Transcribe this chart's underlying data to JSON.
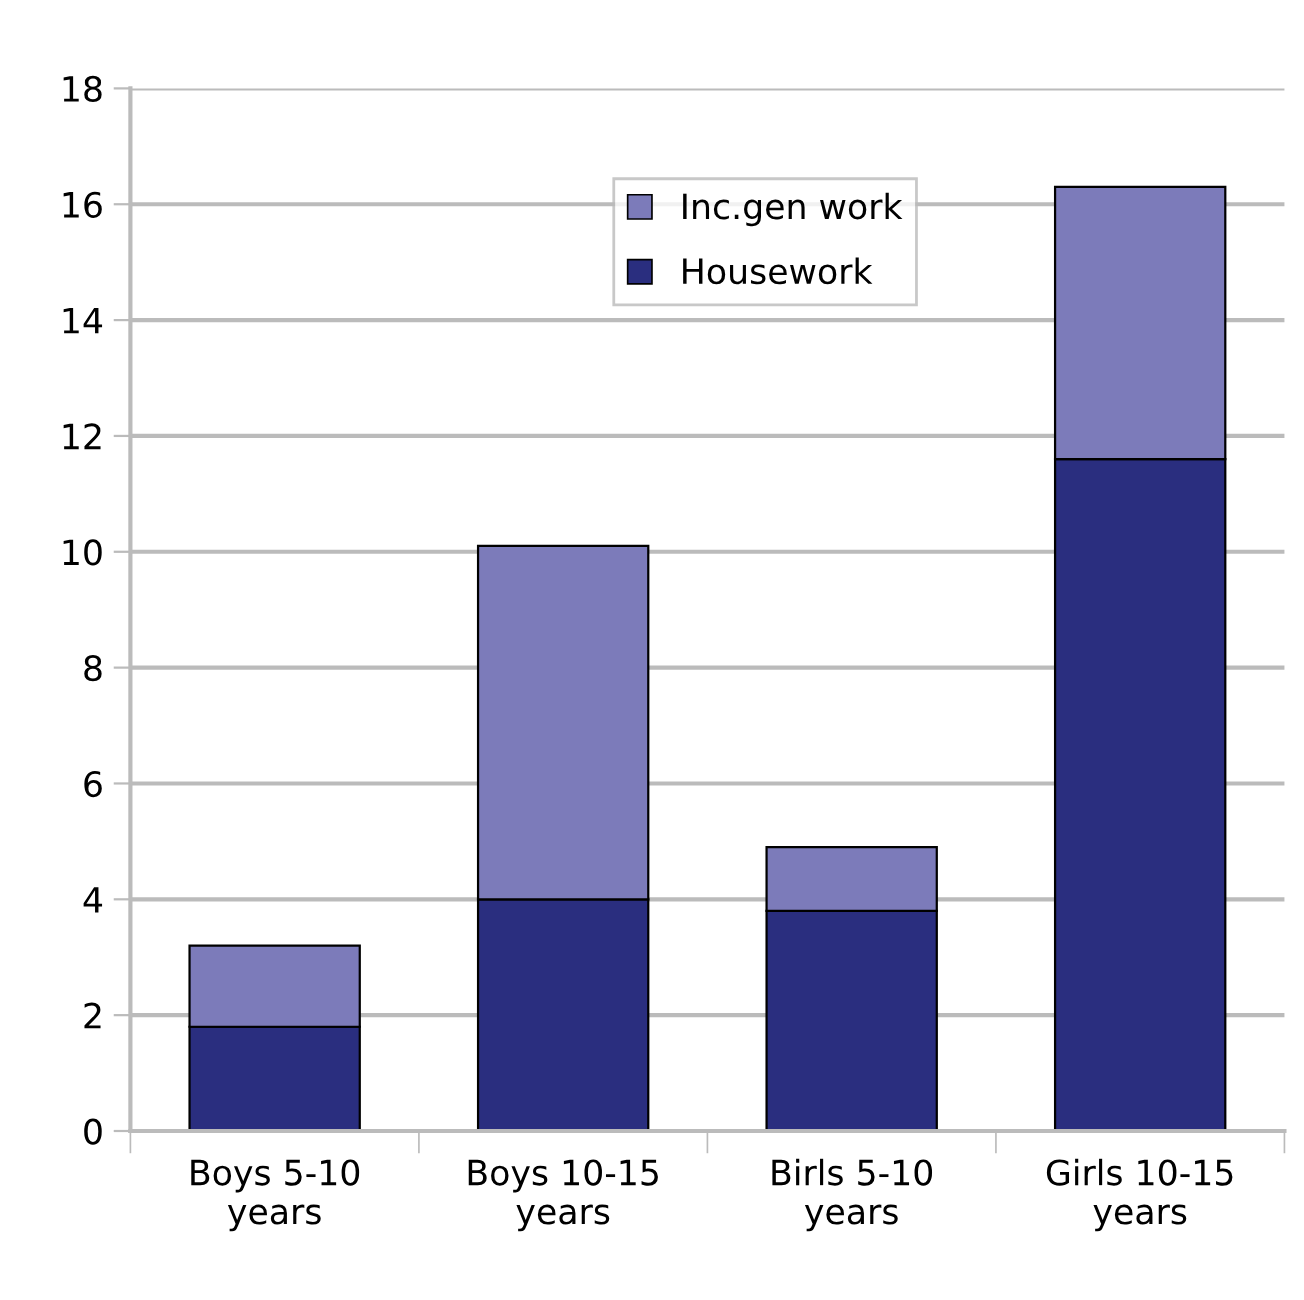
{
  "chart_data": {
    "type": "bar",
    "stacked": true,
    "categories": [
      "Boys 5-10\nyears",
      "Boys 10-15\nyears",
      "Birls 5-10\nyears",
      "Girls 10-15\nyears"
    ],
    "series": [
      {
        "name": "Housework",
        "color": "#2a2e7f",
        "values": [
          1.8,
          4.0,
          3.8,
          11.6
        ]
      },
      {
        "name": "Inc.gen work",
        "color": "#7c7bba",
        "values": [
          1.4,
          6.1,
          1.1,
          4.7
        ]
      }
    ],
    "ylim": [
      0,
      18
    ],
    "yticks": [
      0,
      2,
      4,
      6,
      8,
      10,
      12,
      14,
      16,
      18
    ],
    "grid": "y",
    "legend": "top"
  }
}
